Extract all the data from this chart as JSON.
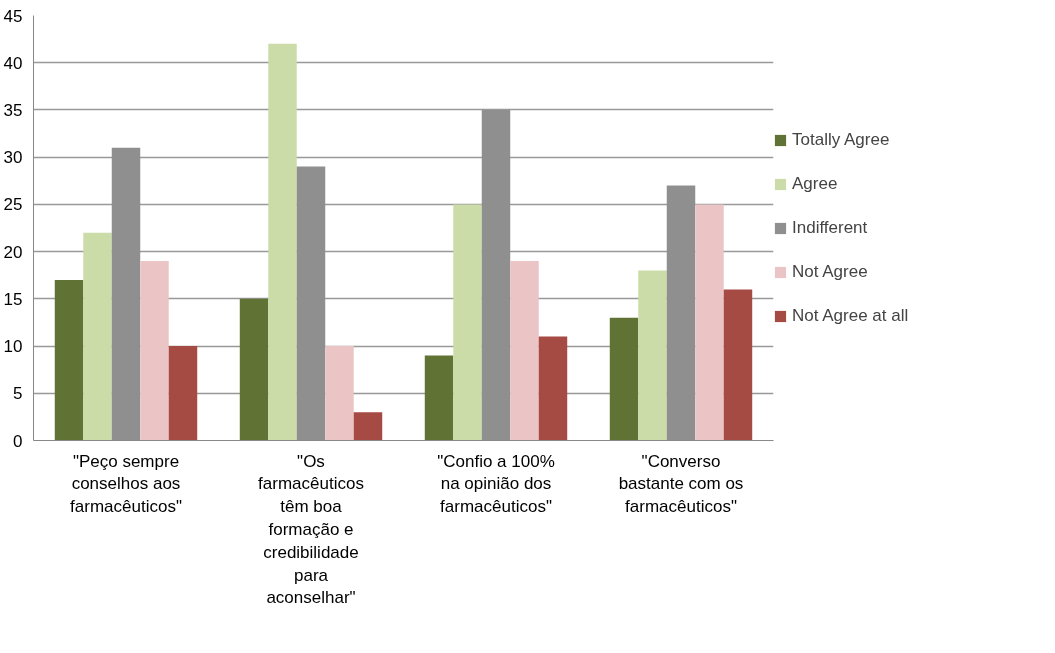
{
  "chart_data": {
    "type": "bar",
    "categories": [
      "\"Peço sempre conselhos aos farmacêuticos\"",
      "\"Os farmacêuticos têm boa formação e credibilidade para aconselhar\"",
      "\"Confio a 100% na opinião dos farmacêuticos\"",
      "\"Converso bastante com os farmacêuticos\""
    ],
    "series": [
      {
        "name": "Totally Agree",
        "color": "#617334",
        "values": [
          17,
          15,
          9,
          13
        ]
      },
      {
        "name": "Agree",
        "color": "#cbdca9",
        "values": [
          22,
          42,
          25,
          18
        ]
      },
      {
        "name": "Indifferent",
        "color": "#8f8f8f",
        "values": [
          31,
          29,
          35,
          27
        ]
      },
      {
        "name": "Not Agree",
        "color": "#ebc5c5",
        "values": [
          19,
          10,
          19,
          25
        ]
      },
      {
        "name": "Not Agree at all",
        "color": "#a64a44",
        "values": [
          10,
          3,
          11,
          16
        ]
      }
    ],
    "ylim": [
      0,
      45
    ],
    "yticks": [
      0,
      5,
      10,
      15,
      20,
      25,
      30,
      35,
      40,
      45
    ],
    "grid": "y",
    "legend": "right"
  }
}
